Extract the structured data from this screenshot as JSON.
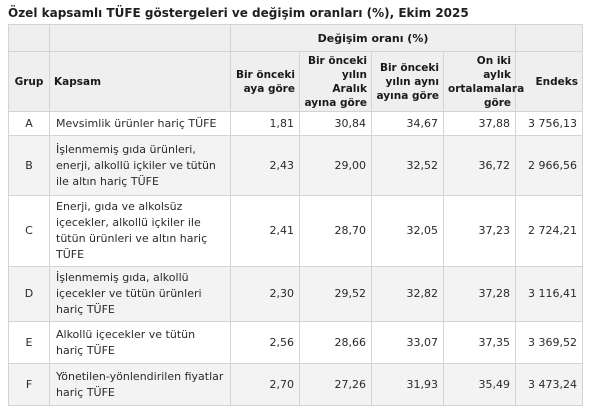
{
  "title": "Özel kapsamlı TÜFE göstergeleri ve değişim oranları (%), Ekim 2025",
  "headers": {
    "group_header": "Değişim oranı (%)",
    "grup": "Grup",
    "kapsam": "Kapsam",
    "col1": "Bir önceki ayagöre",
    "col1_lines": [
      "Bir önceki",
      "aya göre"
    ],
    "col2_lines": [
      "Bir önceki",
      "yılın Aralık",
      "ayına göre"
    ],
    "col3_lines": [
      "Bir önceki",
      "yılın aynı",
      "ayına göre"
    ],
    "col4_lines": [
      "On iki aylık",
      "ortalamalara",
      "göre"
    ],
    "endeks": "Endeks"
  },
  "rows": [
    {
      "grup": "A",
      "kapsam": "Mevsimlik ürünler hariç TÜFE",
      "v1": "1,81",
      "v2": "30,84",
      "v3": "34,67",
      "v4": "37,88",
      "endeks": "3 756,13"
    },
    {
      "grup": "B",
      "kapsam": "İşlenmemiş gıda ürünleri, enerji, alkollü içkiler ve tütün ile altın hariç TÜFE",
      "v1": "2,43",
      "v2": "29,00",
      "v3": "32,52",
      "v4": "36,72",
      "endeks": "2 966,56"
    },
    {
      "grup": "C",
      "kapsam": "Enerji, gıda ve alkolsüz içecekler, alkollü içkiler ile tütün ürünleri ve altın hariç TÜFE",
      "v1": "2,41",
      "v2": "28,70",
      "v3": "32,05",
      "v4": "37,23",
      "endeks": "2 724,21"
    },
    {
      "grup": "D",
      "kapsam": "İşlenmemiş gıda, alkollü içecekler ve tütün ürünleri hariç TÜFE",
      "v1": "2,30",
      "v2": "29,52",
      "v3": "32,82",
      "v4": "37,28",
      "endeks": "3 116,41"
    },
    {
      "grup": "E",
      "kapsam": "Alkollü içecekler ve tütün hariç TÜFE",
      "v1": "2,56",
      "v2": "28,66",
      "v3": "33,07",
      "v4": "37,35",
      "endeks": "3 369,52"
    },
    {
      "grup": "F",
      "kapsam": "Yönetilen-yönlendirilen fiyatlar hariç TÜFE",
      "v1": "2,70",
      "v2": "27,26",
      "v3": "31,93",
      "v4": "35,49",
      "endeks": "3 473,24"
    }
  ]
}
